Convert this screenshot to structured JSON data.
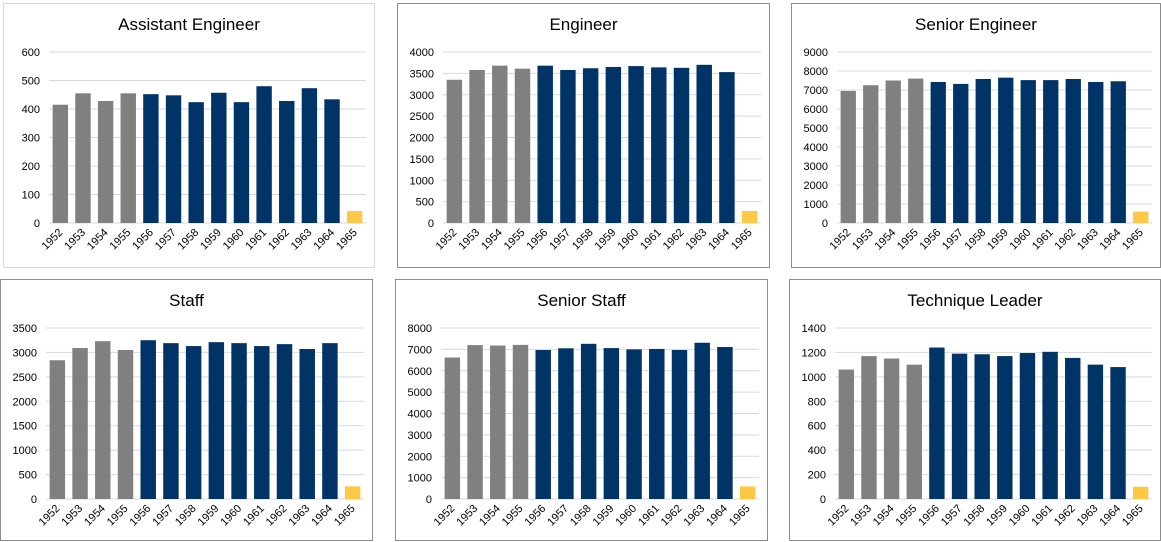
{
  "colors": {
    "early": "#808080",
    "main": "#003366",
    "latest": "#ffc845",
    "grid": "#d9d9d9"
  },
  "chart_data": [
    {
      "type": "bar",
      "title": "Assistant Engineer",
      "categories": [
        "1952",
        "1953",
        "1954",
        "1955",
        "1956",
        "1957",
        "1958",
        "1959",
        "1960",
        "1961",
        "1962",
        "1963",
        "1964",
        "1965"
      ],
      "values": [
        415,
        455,
        428,
        455,
        452,
        448,
        424,
        457,
        424,
        480,
        428,
        473,
        434,
        42
      ],
      "ylim": [
        0,
        600
      ],
      "ystep": 100,
      "grid": true
    },
    {
      "type": "bar",
      "title": "Engineer",
      "categories": [
        "1952",
        "1953",
        "1954",
        "1955",
        "1956",
        "1957",
        "1958",
        "1959",
        "1960",
        "1961",
        "1962",
        "1963",
        "1964",
        "1965"
      ],
      "values": [
        3350,
        3580,
        3680,
        3610,
        3680,
        3580,
        3620,
        3650,
        3670,
        3640,
        3630,
        3700,
        3530,
        280
      ],
      "ylim": [
        0,
        4000
      ],
      "ystep": 500,
      "grid": true
    },
    {
      "type": "bar",
      "title": "Senior Engineer",
      "categories": [
        "1952",
        "1953",
        "1954",
        "1955",
        "1956",
        "1957",
        "1958",
        "1959",
        "1960",
        "1961",
        "1962",
        "1963",
        "1964",
        "1965"
      ],
      "values": [
        6950,
        7250,
        7500,
        7600,
        7420,
        7320,
        7580,
        7650,
        7520,
        7520,
        7580,
        7420,
        7460,
        600
      ],
      "ylim": [
        0,
        9000
      ],
      "ystep": 1000,
      "grid": true
    },
    {
      "type": "bar",
      "title": "Staff",
      "categories": [
        "1952",
        "1953",
        "1954",
        "1955",
        "1956",
        "1957",
        "1958",
        "1959",
        "1960",
        "1961",
        "1962",
        "1963",
        "1964",
        "1965"
      ],
      "values": [
        2840,
        3090,
        3230,
        3050,
        3250,
        3190,
        3130,
        3210,
        3190,
        3130,
        3170,
        3070,
        3190,
        260
      ],
      "ylim": [
        0,
        3500
      ],
      "ystep": 500,
      "grid": true
    },
    {
      "type": "bar",
      "title": "Senior Staff",
      "categories": [
        "1952",
        "1953",
        "1954",
        "1955",
        "1956",
        "1957",
        "1958",
        "1959",
        "1960",
        "1961",
        "1962",
        "1963",
        "1964",
        "1965"
      ],
      "values": [
        6620,
        7200,
        7180,
        7210,
        6970,
        7050,
        7260,
        7060,
        7000,
        7020,
        6970,
        7310,
        7110,
        590
      ],
      "ylim": [
        0,
        8000
      ],
      "ystep": 1000,
      "grid": true
    },
    {
      "type": "bar",
      "title": "Technique Leader",
      "categories": [
        "1952",
        "1953",
        "1954",
        "1955",
        "1956",
        "1957",
        "1958",
        "1959",
        "1960",
        "1961",
        "1962",
        "1963",
        "1964",
        "1965"
      ],
      "values": [
        1060,
        1170,
        1150,
        1100,
        1240,
        1190,
        1185,
        1170,
        1195,
        1205,
        1155,
        1100,
        1080,
        100
      ],
      "ylim": [
        0,
        1400
      ],
      "ystep": 200,
      "grid": true
    }
  ]
}
